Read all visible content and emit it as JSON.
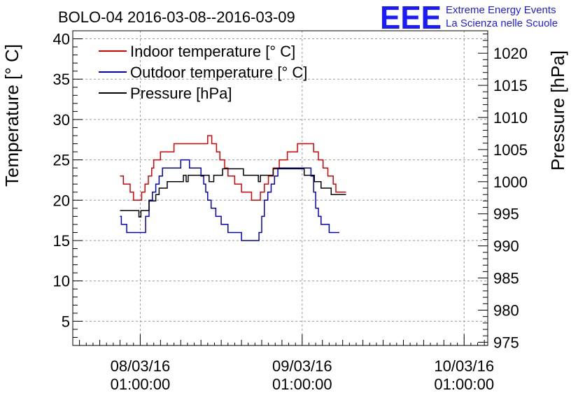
{
  "chart_data": {
    "type": "line",
    "title": "BOLO-04 2016-03-08--2016-03-09",
    "logo": {
      "mark": "EEE",
      "line1": "Extreme Energy Events",
      "line2": "La Scienza nelle Scuole",
      "color": "#1a1aff"
    },
    "ylabel": "Temperature [° C]",
    "y2label": "Pressure [hPa]",
    "ylim": [
      2,
      41
    ],
    "y2lim": [
      974.5,
      1023.5
    ],
    "grid": true,
    "legend_position": "top-left",
    "x_ticks": [
      {
        "x": 24,
        "line1": "08/03/16",
        "line2": "01:00:00"
      },
      {
        "x": 48,
        "line1": "09/03/16",
        "line2": "01:00:00"
      },
      {
        "x": 72,
        "line1": "10/03/16",
        "line2": "01:00:00"
      }
    ],
    "y_ticks": [
      5,
      10,
      15,
      20,
      25,
      30,
      35,
      40
    ],
    "y2_ticks": [
      975,
      980,
      985,
      990,
      995,
      1000,
      1005,
      1010,
      1015,
      1020
    ],
    "series": [
      {
        "name": "Indoor temperature [° C]",
        "axis": "left",
        "color": "#dd0000",
        "points": [
          [
            21,
            23
          ],
          [
            21.5,
            22
          ],
          [
            22.5,
            21
          ],
          [
            23,
            20
          ],
          [
            24.2,
            21
          ],
          [
            24.7,
            22
          ],
          [
            25.2,
            23
          ],
          [
            25.7,
            24
          ],
          [
            26,
            25
          ],
          [
            27,
            26
          ],
          [
            28.5,
            26
          ],
          [
            29,
            27
          ],
          [
            33,
            27
          ],
          [
            34,
            28
          ],
          [
            34.6,
            27
          ],
          [
            35.3,
            26
          ],
          [
            35.8,
            25
          ],
          [
            36.5,
            24
          ],
          [
            37,
            23
          ],
          [
            38,
            22
          ],
          [
            39,
            21
          ],
          [
            40.5,
            20
          ],
          [
            41.8,
            21
          ],
          [
            42.4,
            22
          ],
          [
            43,
            23
          ],
          [
            43.7,
            24
          ],
          [
            44.6,
            25
          ],
          [
            45.8,
            26
          ],
          [
            47.3,
            27
          ],
          [
            48.8,
            27
          ],
          [
            49.7,
            26
          ],
          [
            50.4,
            25
          ],
          [
            51.1,
            24
          ],
          [
            51.8,
            23
          ],
          [
            52.6,
            22
          ],
          [
            53,
            21
          ],
          [
            54.5,
            21
          ]
        ]
      },
      {
        "name": "Outdoor temperature [° C]",
        "axis": "left",
        "color": "#0000cc",
        "points": [
          [
            21,
            18
          ],
          [
            21.2,
            17
          ],
          [
            22,
            16
          ],
          [
            24.5,
            16
          ],
          [
            24.8,
            18
          ],
          [
            25.3,
            20
          ],
          [
            25.8,
            21
          ],
          [
            26.3,
            22
          ],
          [
            26.8,
            23
          ],
          [
            27.3,
            24
          ],
          [
            29.5,
            24
          ],
          [
            30,
            25
          ],
          [
            31,
            25
          ],
          [
            31.3,
            24
          ],
          [
            32.5,
            24
          ],
          [
            33,
            23
          ],
          [
            33.4,
            22
          ],
          [
            33.7,
            21
          ],
          [
            34,
            20
          ],
          [
            34.5,
            19
          ],
          [
            35.2,
            18
          ],
          [
            36,
            17
          ],
          [
            37,
            16
          ],
          [
            38.5,
            16
          ],
          [
            39,
            15
          ],
          [
            41,
            15
          ],
          [
            41.6,
            16
          ],
          [
            42,
            18
          ],
          [
            42.4,
            20
          ],
          [
            42.9,
            21
          ],
          [
            43.4,
            22
          ],
          [
            43.9,
            23
          ],
          [
            44.4,
            24
          ],
          [
            48.5,
            24
          ],
          [
            49.3,
            23
          ],
          [
            49.7,
            21
          ],
          [
            50,
            19
          ],
          [
            50.4,
            18
          ],
          [
            50.8,
            17
          ],
          [
            52,
            16
          ],
          [
            53.5,
            16
          ]
        ]
      },
      {
        "name": "Pressure [hPa]",
        "axis": "right",
        "color": "#000000",
        "points": [
          [
            21,
            995.5
          ],
          [
            23.5,
            995.5
          ],
          [
            23.8,
            994.5
          ],
          [
            24.1,
            995.5
          ],
          [
            24.8,
            995.5
          ],
          [
            25.3,
            997
          ],
          [
            26,
            997
          ],
          [
            26.3,
            998
          ],
          [
            26.8,
            999
          ],
          [
            27.5,
            999
          ],
          [
            28,
            1000
          ],
          [
            30,
            1000
          ],
          [
            30.4,
            1001
          ],
          [
            30.8,
            1000
          ],
          [
            31.1,
            1001
          ],
          [
            32.5,
            1001
          ],
          [
            33.6,
            1001
          ],
          [
            34.2,
            1000
          ],
          [
            34.9,
            1001
          ],
          [
            36.2,
            1002
          ],
          [
            38.8,
            1002
          ],
          [
            39.3,
            1001
          ],
          [
            41.2,
            1001
          ],
          [
            41.5,
            1000
          ],
          [
            41.8,
            1001
          ],
          [
            43.3,
            1001
          ],
          [
            43.7,
            1002
          ],
          [
            47.5,
            1002
          ],
          [
            48.3,
            1001
          ],
          [
            49.8,
            1000
          ],
          [
            50.8,
            999
          ],
          [
            51.3,
            999
          ],
          [
            52.3,
            998
          ],
          [
            53,
            998
          ],
          [
            54.5,
            998
          ]
        ]
      }
    ]
  }
}
